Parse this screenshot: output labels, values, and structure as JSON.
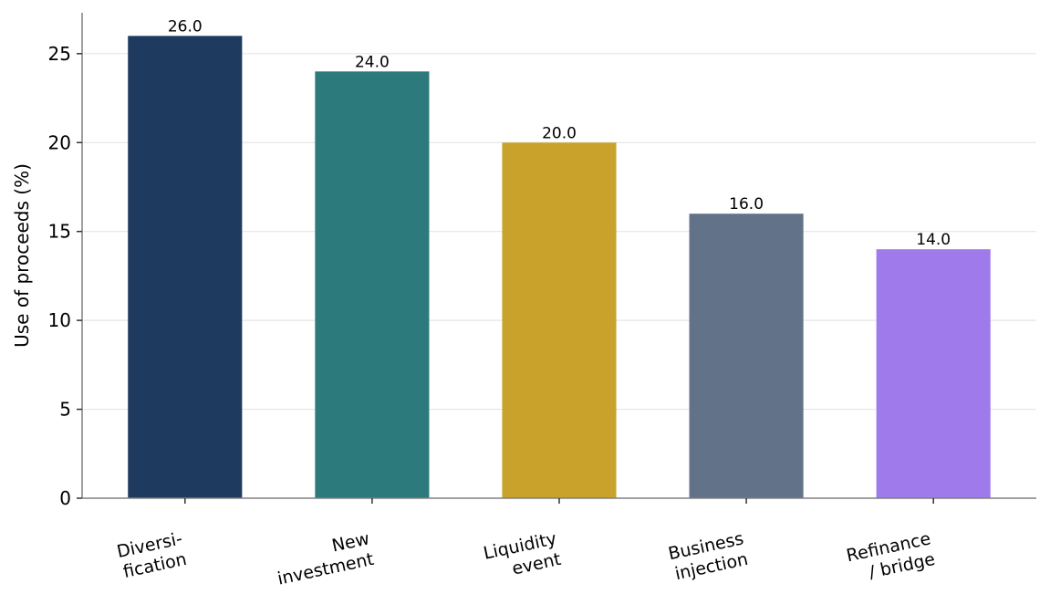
{
  "chart_data": {
    "type": "bar",
    "categories": [
      [
        "Diversi-",
        "fication"
      ],
      [
        "New",
        "investment"
      ],
      [
        "Liquidity",
        "event"
      ],
      [
        "Business",
        "injection"
      ],
      [
        "Refinance",
        "/ bridge"
      ]
    ],
    "values": [
      26.0,
      24.0,
      20.0,
      16.0,
      14.0
    ],
    "value_labels": [
      "26.0",
      "24.0",
      "20.0",
      "16.0",
      "14.0"
    ],
    "colors": [
      "#1f3a5f",
      "#2c7a7b",
      "#c9a22b",
      "#627389",
      "#9f7aea"
    ],
    "ylabel": "Use of proceeds (%)",
    "xlabel": "",
    "title": "",
    "ylim": [
      0,
      27.3
    ],
    "yticks": [
      0,
      5,
      10,
      15,
      20,
      25
    ],
    "grid": "horizontal",
    "legend": "none"
  }
}
